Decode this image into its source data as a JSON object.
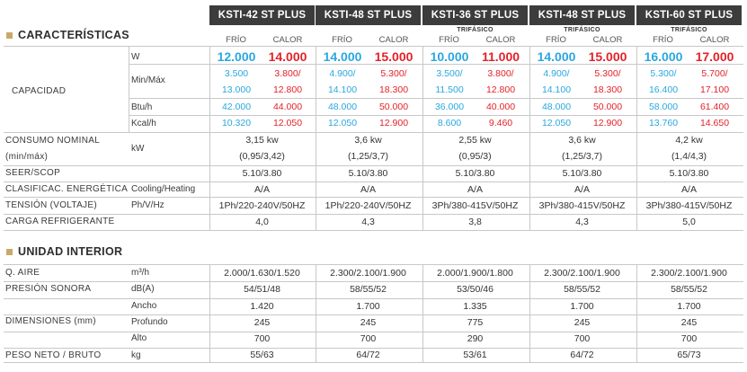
{
  "models": [
    "KSTI-42 ST PLUS",
    "KSTI-48 ST PLUS",
    "KSTI-36 ST PLUS",
    "KSTI-48 ST PLUS",
    "KSTI-60 ST PLUS"
  ],
  "subtitles": [
    "",
    "",
    "TRIFÁSICO",
    "TRIFÁSICO",
    "TRIFÁSICO"
  ],
  "mode_cold": "FRÍO",
  "mode_heat": "CALOR",
  "sections": {
    "features": "CARACTERÍSTICAS",
    "indoor": "UNIDAD INTERIOR"
  },
  "labels": {
    "capacity": "CAPACIDAD",
    "consumption_1": "CONSUMO NOMINAL",
    "consumption_2": "(min/máx)",
    "seer": "SEER/SCOP",
    "energy_class": "CLASIFICAC. ENERGÉTICA",
    "voltage": "TENSIÓN (VOLTAJE)",
    "refrigerant": "CARGA REFRIGERANTE",
    "air": "Q. AIRE",
    "sound": "PRESIÓN SONORA",
    "dimensions": "DIMENSIONES (mm)",
    "weight": "PESO NETO / BRUTO"
  },
  "units": {
    "w": "W",
    "minmax": "Min/Máx",
    "btu": "Btu/h",
    "kcal": "Kcal/h",
    "kw": "kW",
    "cooling_heating": "Cooling/Heating",
    "ph_v_hz": "Ph/V/Hz",
    "kg": "kg",
    "air": "m³/h",
    "dba": "dB(A)",
    "width": "Ancho",
    "depth": "Profundo",
    "height": "Alto",
    "kg2": "kg"
  },
  "capacity": {
    "w": [
      [
        "12.000",
        "14.000"
      ],
      [
        "14.000",
        "15.000"
      ],
      [
        "10.000",
        "11.000"
      ],
      [
        "14.000",
        "15.000"
      ],
      [
        "16.000",
        "17.000"
      ]
    ],
    "min": [
      [
        "3.500",
        "3.800/"
      ],
      [
        "4.900/",
        "5.300/"
      ],
      [
        "3.500/",
        "3.800/"
      ],
      [
        "4.900/",
        "5.300/"
      ],
      [
        "5.300/",
        "5.700/"
      ]
    ],
    "max": [
      [
        "13.000",
        "12.800"
      ],
      [
        "14.100",
        "18.300"
      ],
      [
        "11.500",
        "12.800"
      ],
      [
        "14.100",
        "18.300"
      ],
      [
        "16.400",
        "17.100"
      ]
    ],
    "btu": [
      [
        "42.000",
        "44.000"
      ],
      [
        "48.000",
        "50.000"
      ],
      [
        "36.000",
        "40.000"
      ],
      [
        "48.000",
        "50.000"
      ],
      [
        "58.000",
        "61.400"
      ]
    ],
    "kcal": [
      [
        "10.320",
        "12.050"
      ],
      [
        "12.050",
        "12.900"
      ],
      [
        "8.600",
        "9.460"
      ],
      [
        "12.050",
        "12.900"
      ],
      [
        "13.760",
        "14.650"
      ]
    ]
  },
  "consumption_nominal": [
    "3,15 kw",
    "3,6 kw",
    "2,55 kw",
    "3,6 kw",
    "4,2 kw"
  ],
  "consumption_range": [
    "(0,95/3,42)",
    "(1,25/3,7)",
    "(0,95/3)",
    "(1,25/3,7)",
    "(1,4/4,3)"
  ],
  "seer": [
    "5.10/3.80",
    "5.10/3.80",
    "5.10/3.80",
    "5.10/3.80",
    "5.10/3.80"
  ],
  "energy_class": [
    "A/A",
    "A/A",
    "A/A",
    "A/A",
    "A/A"
  ],
  "voltage": [
    "1Ph/220-240V/50HZ",
    "1Ph/220-240V/50HZ",
    "3Ph/380-415V/50HZ",
    "3Ph/380-415V/50HZ",
    "3Ph/380-415V/50HZ"
  ],
  "refrigerant": [
    "4,0",
    "4,3",
    "3,8",
    "4,3",
    "5,0"
  ],
  "air": [
    "2.000/1.630/1.520",
    "2.300/2.100/1.900",
    "2.000/1.900/1.800",
    "2.300/2.100/1.900",
    "2.300/2.100/1.900"
  ],
  "sound": [
    "54/51/48",
    "58/55/52",
    "53/50/46",
    "58/55/52",
    "58/55/52"
  ],
  "width": [
    "1.420",
    "1.700",
    "1.335",
    "1.700",
    "1.700"
  ],
  "depth": [
    "245",
    "245",
    "775",
    "245",
    "245"
  ],
  "height": [
    "700",
    "700",
    "290",
    "700",
    "700"
  ],
  "weight": [
    "55/63",
    "64/72",
    "53/61",
    "64/72",
    "65/73"
  ]
}
